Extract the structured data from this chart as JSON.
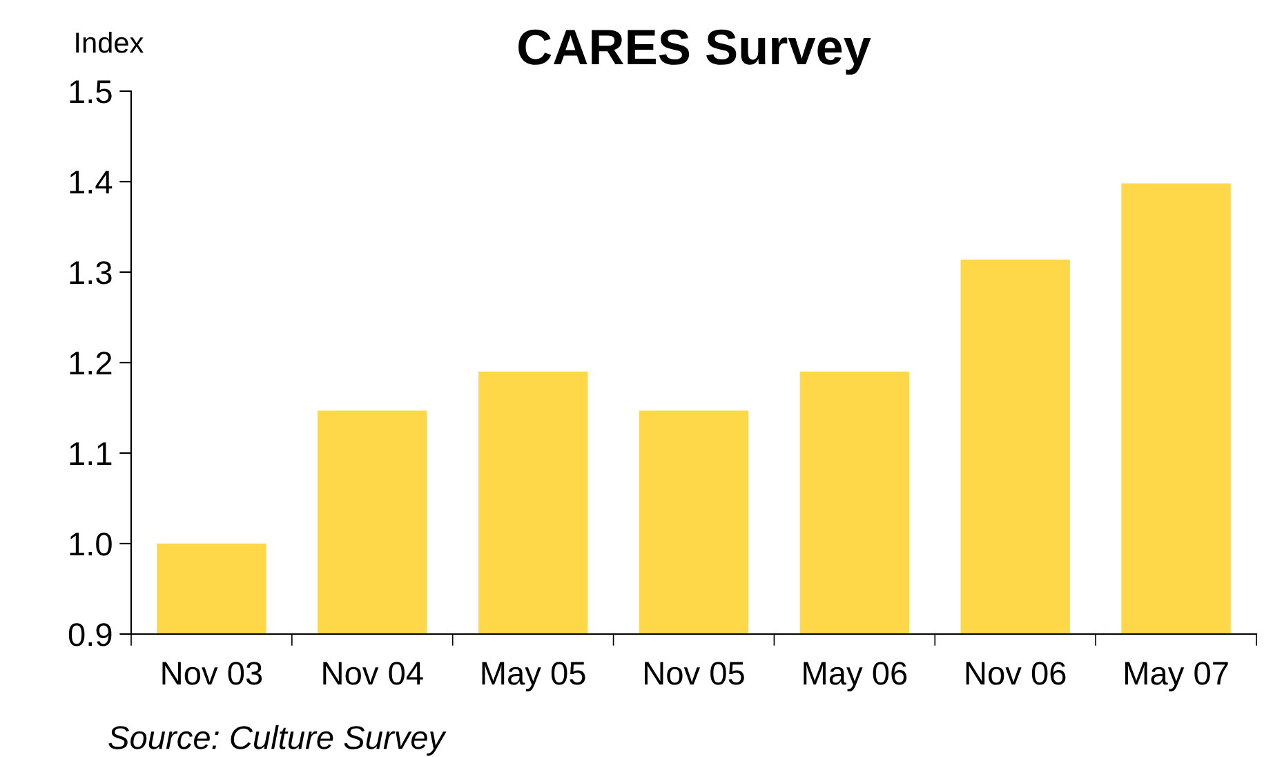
{
  "chart_data": {
    "type": "bar",
    "title": "CARES Survey",
    "ylabel": "Index",
    "categories": [
      "Nov 03",
      "Nov 04",
      "May 05",
      "Nov 05",
      "May 06",
      "Nov 06",
      "May 07"
    ],
    "values": [
      1.0,
      1.147,
      1.19,
      1.147,
      1.19,
      1.314,
      1.398
    ],
    "color": "#ffd84a",
    "ylim": [
      0.9,
      1.5
    ],
    "yticks": [
      {
        "value": 0.9,
        "label": "0.9"
      },
      {
        "value": 1.0,
        "label": "1.0"
      },
      {
        "value": 1.1,
        "label": "1.1"
      },
      {
        "value": 1.2,
        "label": "1.2"
      },
      {
        "value": 1.3,
        "label": "1.3"
      },
      {
        "value": 1.4,
        "label": "1.4"
      },
      {
        "value": 1.5,
        "label": "1.5"
      }
    ],
    "grid": false,
    "legend": false,
    "annotations": [
      "Source: Culture Survey"
    ]
  }
}
